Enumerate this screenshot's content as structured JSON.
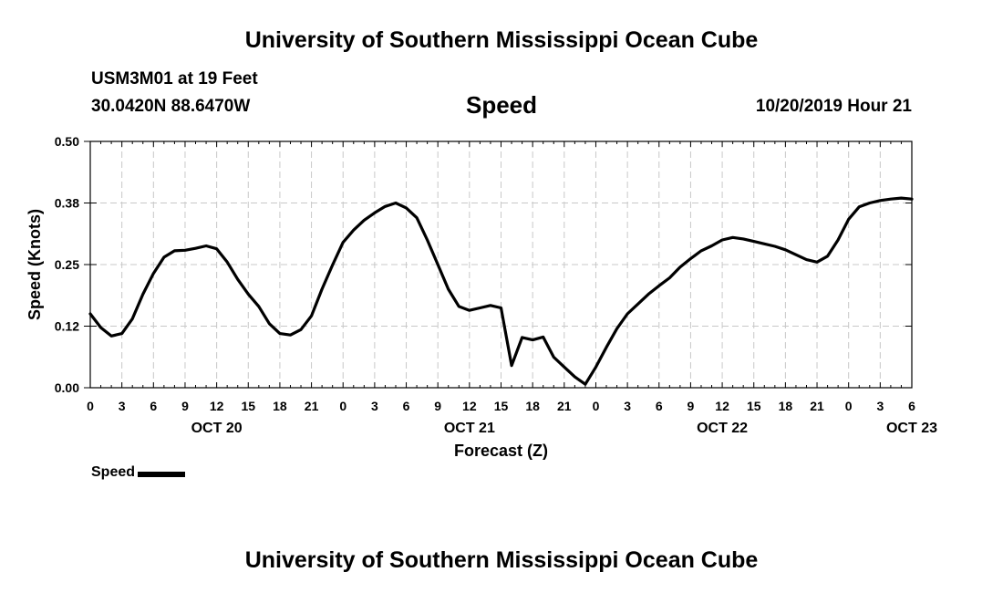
{
  "header": {
    "title": "University of Southern Mississippi Ocean Cube",
    "station": "USM3M01 at 19 Feet",
    "coords": "30.0420N 88.6470W",
    "variable": "Speed",
    "timestamp": "10/20/2019 Hour 21"
  },
  "footer": {
    "title": "University of Southern Mississippi Ocean Cube"
  },
  "legend": {
    "label": "Speed"
  },
  "chart_data": {
    "type": "line",
    "title": "Speed",
    "xlabel": "Forecast (Z)",
    "ylabel": "Speed (Knots)",
    "x_units": "hours since OCT 20 00Z",
    "xlim": [
      0,
      78
    ],
    "ylim": [
      0,
      0.5
    ],
    "yticks": [
      "0.00",
      "0.12",
      "0.25",
      "0.38",
      "0.50"
    ],
    "xtick_labels": [
      "0",
      "3",
      "6",
      "9",
      "12",
      "15",
      "18",
      "21",
      "0",
      "3",
      "6",
      "9",
      "12",
      "15",
      "18",
      "21",
      "0",
      "3",
      "6",
      "9",
      "12",
      "15",
      "18",
      "21",
      "0",
      "3",
      "6"
    ],
    "date_labels": [
      {
        "label": "OCT 20",
        "hour": 12
      },
      {
        "label": "OCT 21",
        "hour": 36
      },
      {
        "label": "OCT 22",
        "hour": 60
      },
      {
        "label": "OCT 23",
        "hour": 78
      }
    ],
    "grid": true,
    "line_color": "#000000",
    "series": [
      {
        "name": "Speed",
        "x": [
          0,
          1,
          2,
          3,
          4,
          5,
          6,
          7,
          8,
          9,
          10,
          11,
          12,
          13,
          14,
          15,
          16,
          17,
          18,
          19,
          20,
          21,
          22,
          23,
          24,
          25,
          26,
          27,
          28,
          29,
          30,
          31,
          32,
          33,
          34,
          35,
          36,
          37,
          38,
          39,
          40,
          41,
          42,
          43,
          44,
          45,
          46,
          47,
          48,
          49,
          50,
          51,
          52,
          53,
          54,
          55,
          56,
          57,
          58,
          59,
          60,
          61,
          62,
          63,
          64,
          65,
          66,
          67,
          68,
          69,
          70,
          71,
          72,
          73,
          74,
          75,
          76,
          77,
          78
        ],
        "values": [
          0.15,
          0.122,
          0.105,
          0.11,
          0.14,
          0.19,
          0.232,
          0.265,
          0.278,
          0.279,
          0.283,
          0.288,
          0.282,
          0.255,
          0.22,
          0.19,
          0.165,
          0.13,
          0.11,
          0.107,
          0.118,
          0.146,
          0.2,
          0.249,
          0.295,
          0.32,
          0.34,
          0.355,
          0.368,
          0.375,
          0.365,
          0.345,
          0.3,
          0.25,
          0.2,
          0.165,
          0.157,
          0.162,
          0.167,
          0.162,
          0.045,
          0.102,
          0.097,
          0.103,
          0.062,
          0.042,
          0.022,
          0.007,
          0.042,
          0.082,
          0.12,
          0.15,
          0.17,
          0.19,
          0.207,
          0.223,
          0.245,
          0.262,
          0.278,
          0.288,
          0.3,
          0.305,
          0.302,
          0.297,
          0.292,
          0.287,
          0.28,
          0.27,
          0.26,
          0.255,
          0.267,
          0.3,
          0.342,
          0.367,
          0.375,
          0.38,
          0.383,
          0.385,
          0.383
        ]
      }
    ]
  }
}
